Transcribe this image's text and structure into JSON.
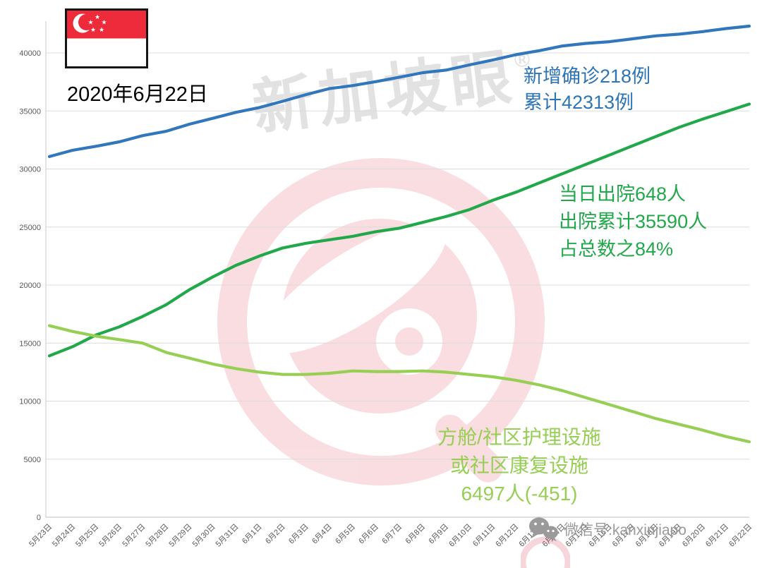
{
  "header": {
    "date_label": "2020年6月22日"
  },
  "watermark": {
    "brand": "新加坡眼",
    "registered": "®"
  },
  "annotations": {
    "confirmed": {
      "color": "#2E75B6",
      "line1": "新增确诊218例",
      "line2": "累计42313例"
    },
    "discharged": {
      "color": "#21A84A",
      "line1": "当日出院648人",
      "line2": "出院累计35590人",
      "line3": "占总数之84%"
    },
    "community": {
      "color": "#97CE54",
      "line1": "方舱/社区护理设施",
      "line2": "或社区康复设施",
      "line3": "6497人(-451)"
    }
  },
  "footer": {
    "wechat_label": "微信号:kanxinjiapo"
  },
  "chart_data": {
    "type": "line",
    "title": "",
    "xlabel": "",
    "ylabel": "",
    "ylim": [
      0,
      42500
    ],
    "grid": true,
    "legend": "none",
    "yticks": [
      0,
      5000,
      10000,
      15000,
      20000,
      25000,
      30000,
      35000,
      40000
    ],
    "x": [
      "5月23日",
      "5月24日",
      "5月25日",
      "5月26日",
      "5月27日",
      "5月28日",
      "5月29日",
      "5月30日",
      "5月31日",
      "6月1日",
      "6月2日",
      "6月3日",
      "6月4日",
      "6月5日",
      "6月6日",
      "6月7日",
      "6月8日",
      "6月9日",
      "6月10日",
      "6月11日",
      "6月12日",
      "6月13日",
      "6月14日",
      "6月15日",
      "6月16日",
      "6月17日",
      "6月18日",
      "6月19日",
      "6月20日",
      "6月21日",
      "6月22日"
    ],
    "series": [
      {
        "name": "confirmed_cumulative",
        "label_from_annotation": "累计42313例",
        "color": "#3276BC",
        "values": [
          31068,
          31616,
          31960,
          32343,
          32876,
          33249,
          33860,
          34366,
          34884,
          35292,
          35836,
          36405,
          36922,
          37183,
          37527,
          37910,
          38296,
          38514,
          38965,
          39387,
          39850,
          40197,
          40604,
          40818,
          40969,
          41216,
          41473,
          41615,
          41833,
          42095,
          42313
        ]
      },
      {
        "name": "discharged_cumulative",
        "label_from_annotation": "出院累计35590人",
        "color": "#21A84A",
        "values": [
          13900,
          14700,
          15700,
          16400,
          17300,
          18300,
          19600,
          20700,
          21700,
          22500,
          23200,
          23600,
          23900,
          24200,
          24600,
          24900,
          25400,
          25900,
          26500,
          27300,
          28000,
          28800,
          29600,
          30400,
          31200,
          32000,
          32800,
          33600,
          34300,
          34942,
          35590
        ]
      },
      {
        "name": "community_facility_current",
        "label_from_annotation": "6497人(-451)",
        "color": "#97CE54",
        "values": [
          16500,
          16000,
          15600,
          15300,
          15000,
          14200,
          13700,
          13200,
          12800,
          12500,
          12300,
          12300,
          12400,
          12600,
          12550,
          12550,
          12600,
          12500,
          12300,
          12100,
          11800,
          11400,
          10900,
          10300,
          9700,
          9100,
          8500,
          8000,
          7500,
          6948,
          6497
        ]
      }
    ]
  }
}
